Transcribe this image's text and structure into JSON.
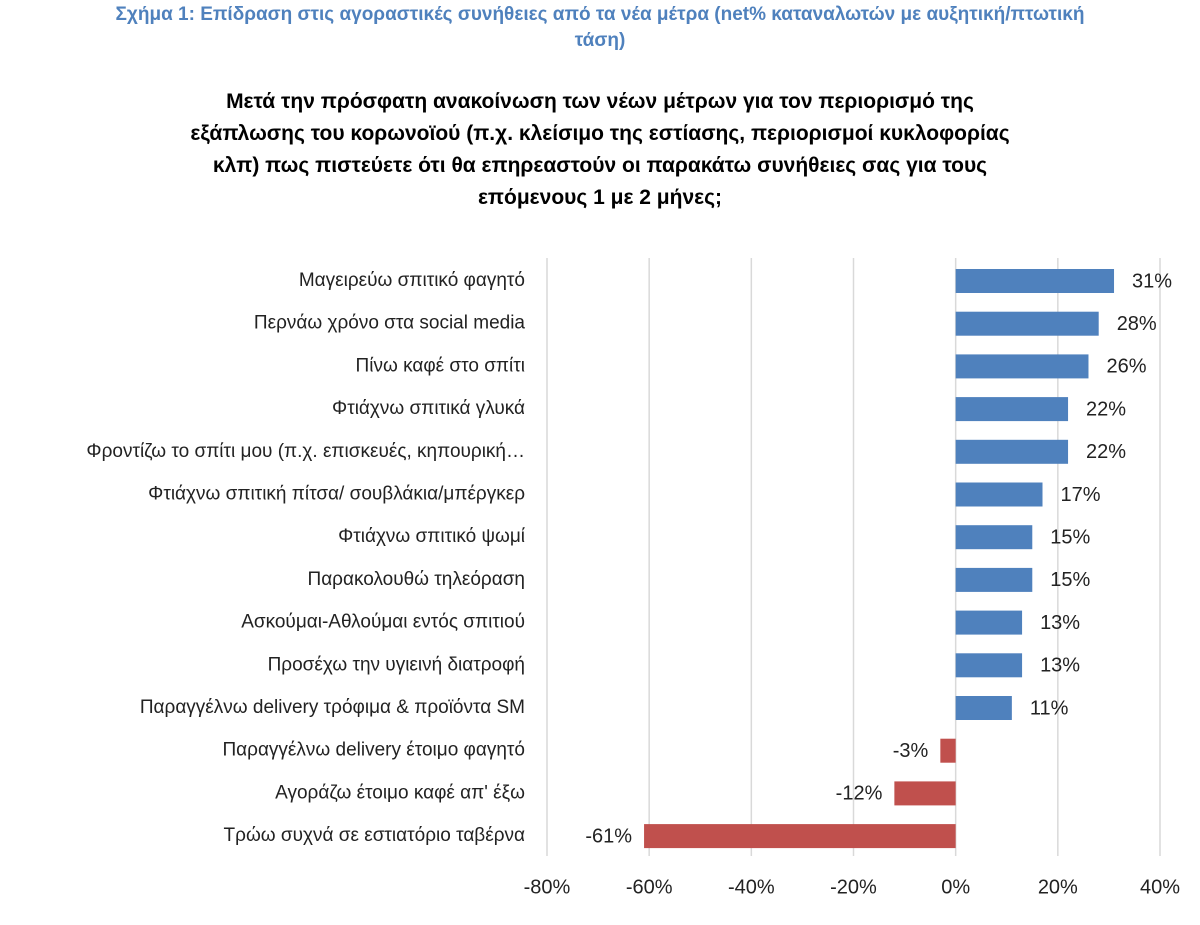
{
  "chart_data": {
    "type": "bar",
    "orientation": "horizontal",
    "title": "Σχήμα 1: Επίδραση στις αγοραστικές συνήθειες από τα νέα μέτρα (net% καταναλωτών με αυξητική/πτωτική τάση)",
    "subtitle": "Μετά την πρόσφατη ανακοίνωση των νέων μέτρων για τον περιορισμό της εξάπλωσης του κορωνοϊού (π.χ. κλείσιμο της εστίασης, περιορισμοί κυκλοφορίας κλπ) πως πιστεύετε ότι θα επηρεαστούν οι παρακάτω συνήθειες σας για τους επόμενους 1 με 2 μήνες;",
    "categories": [
      "Μαγειρεύω σπιτικό φαγητό",
      "Περνάω χρόνο στα social media",
      "Πίνω καφέ στο σπίτι",
      "Φτιάχνω σπιτικά γλυκά",
      "Φροντίζω το σπίτι μου (π.χ. επισκευές, κηπουρική…",
      "Φτιάχνω σπιτική πίτσα/ σουβλάκια/μπέργκερ",
      "Φτιάχνω σπιτικό ψωμί",
      "Παρακολουθώ τηλεόραση",
      "Ασκούμαι-Αθλούμαι εντός σπιτιού",
      "Προσέχω την υγιεινή διατροφή",
      "Παραγγέλνω delivery τρόφιμα & προϊόντα SM",
      "Παραγγέλνω delivery έτοιμο φαγητό",
      "Αγοράζω έτοιμο καφέ απ' έξω",
      "Τρώω συχνά σε εστιατόριο ταβέρνα"
    ],
    "values": [
      31,
      28,
      26,
      22,
      22,
      17,
      15,
      15,
      13,
      13,
      11,
      -3,
      -12,
      -61
    ],
    "value_labels": [
      "31%",
      "28%",
      "26%",
      "22%",
      "22%",
      "17%",
      "15%",
      "15%",
      "13%",
      "13%",
      "11%",
      "-3%",
      "-12%",
      "-61%"
    ],
    "color": "#4f81bd",
    "negative_color": "#c0504d",
    "xlim": [
      -80,
      40
    ],
    "xticks": [
      {
        "value": -80,
        "label": "-80%"
      },
      {
        "value": -60,
        "label": "-60%"
      },
      {
        "value": -40,
        "label": "-40%"
      },
      {
        "value": -20,
        "label": "-20%"
      },
      {
        "value": 0,
        "label": "0%"
      },
      {
        "value": 20,
        "label": "20%"
      },
      {
        "value": 40,
        "label": "40%"
      }
    ],
    "grid": true
  }
}
